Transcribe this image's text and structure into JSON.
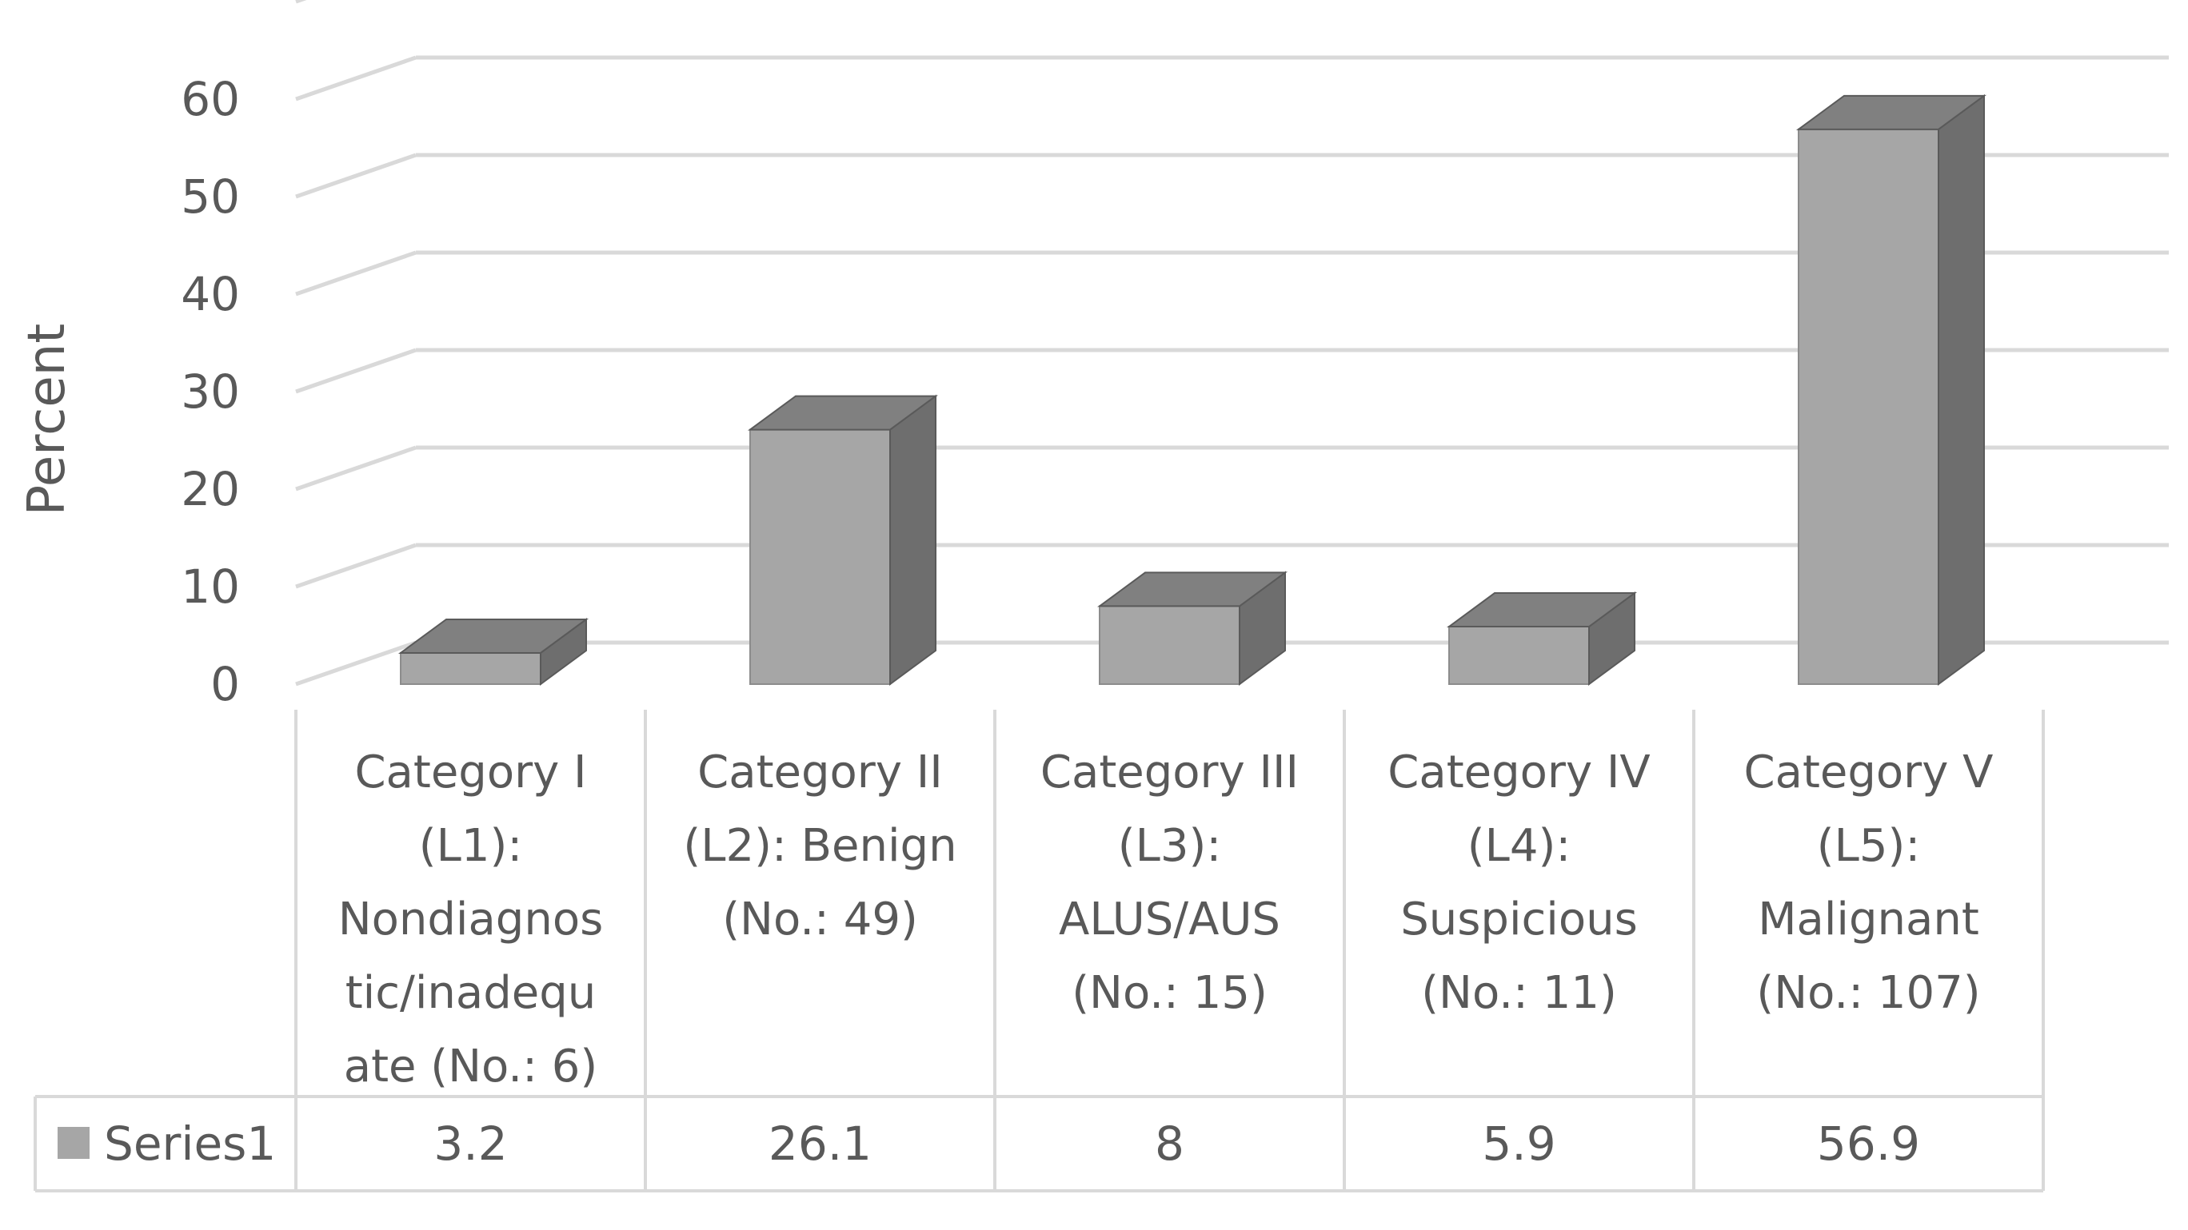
{
  "chart_data": {
    "type": "bar",
    "style": "3d-column",
    "ylabel": "Percent",
    "xlabel": "",
    "ylim": [
      0,
      60
    ],
    "yticks": [
      0,
      10,
      20,
      30,
      40,
      50,
      60
    ],
    "grid": true,
    "legend_placement": "data-table-left",
    "categories": [
      "Category I (L1): Nondiagnostic/inadequate (No.: 6)",
      "Category II (L2): Benign (No.: 49)",
      "Category III (L3): ALUS/AUS (No.: 15)",
      "Category IV (L4): Suspicious (No.: 11)",
      "Category V (L5): Malignant (No.: 107)"
    ],
    "category_label_lines": [
      [
        "Category I",
        "(L1):",
        "Nondiagnos",
        "tic/inadequ",
        "ate (No.: 6)"
      ],
      [
        "Category II",
        "(L2): Benign",
        "(No.: 49)"
      ],
      [
        "Category III",
        "(L3):",
        "ALUS/AUS",
        "(No.: 15)"
      ],
      [
        "Category IV",
        "(L4):",
        "Suspicious",
        "(No.: 11)"
      ],
      [
        "Category V",
        "(L5):",
        "Malignant",
        "(No.: 107)"
      ]
    ],
    "series": [
      {
        "name": "Series1",
        "values": [
          3.2,
          26.1,
          8,
          5.9,
          56.9
        ],
        "value_labels": [
          "3.2",
          "26.1",
          "8",
          "5.9",
          "56.9"
        ]
      }
    ],
    "colors": {
      "bar_front": "#a6a6a6",
      "bar_side": "#6e6e6e",
      "bar_top": "#808080",
      "grid": "#d9d9d9",
      "table_border": "#d9d9d9",
      "text": "#595959",
      "legend_key": "#a6a6a6"
    }
  }
}
